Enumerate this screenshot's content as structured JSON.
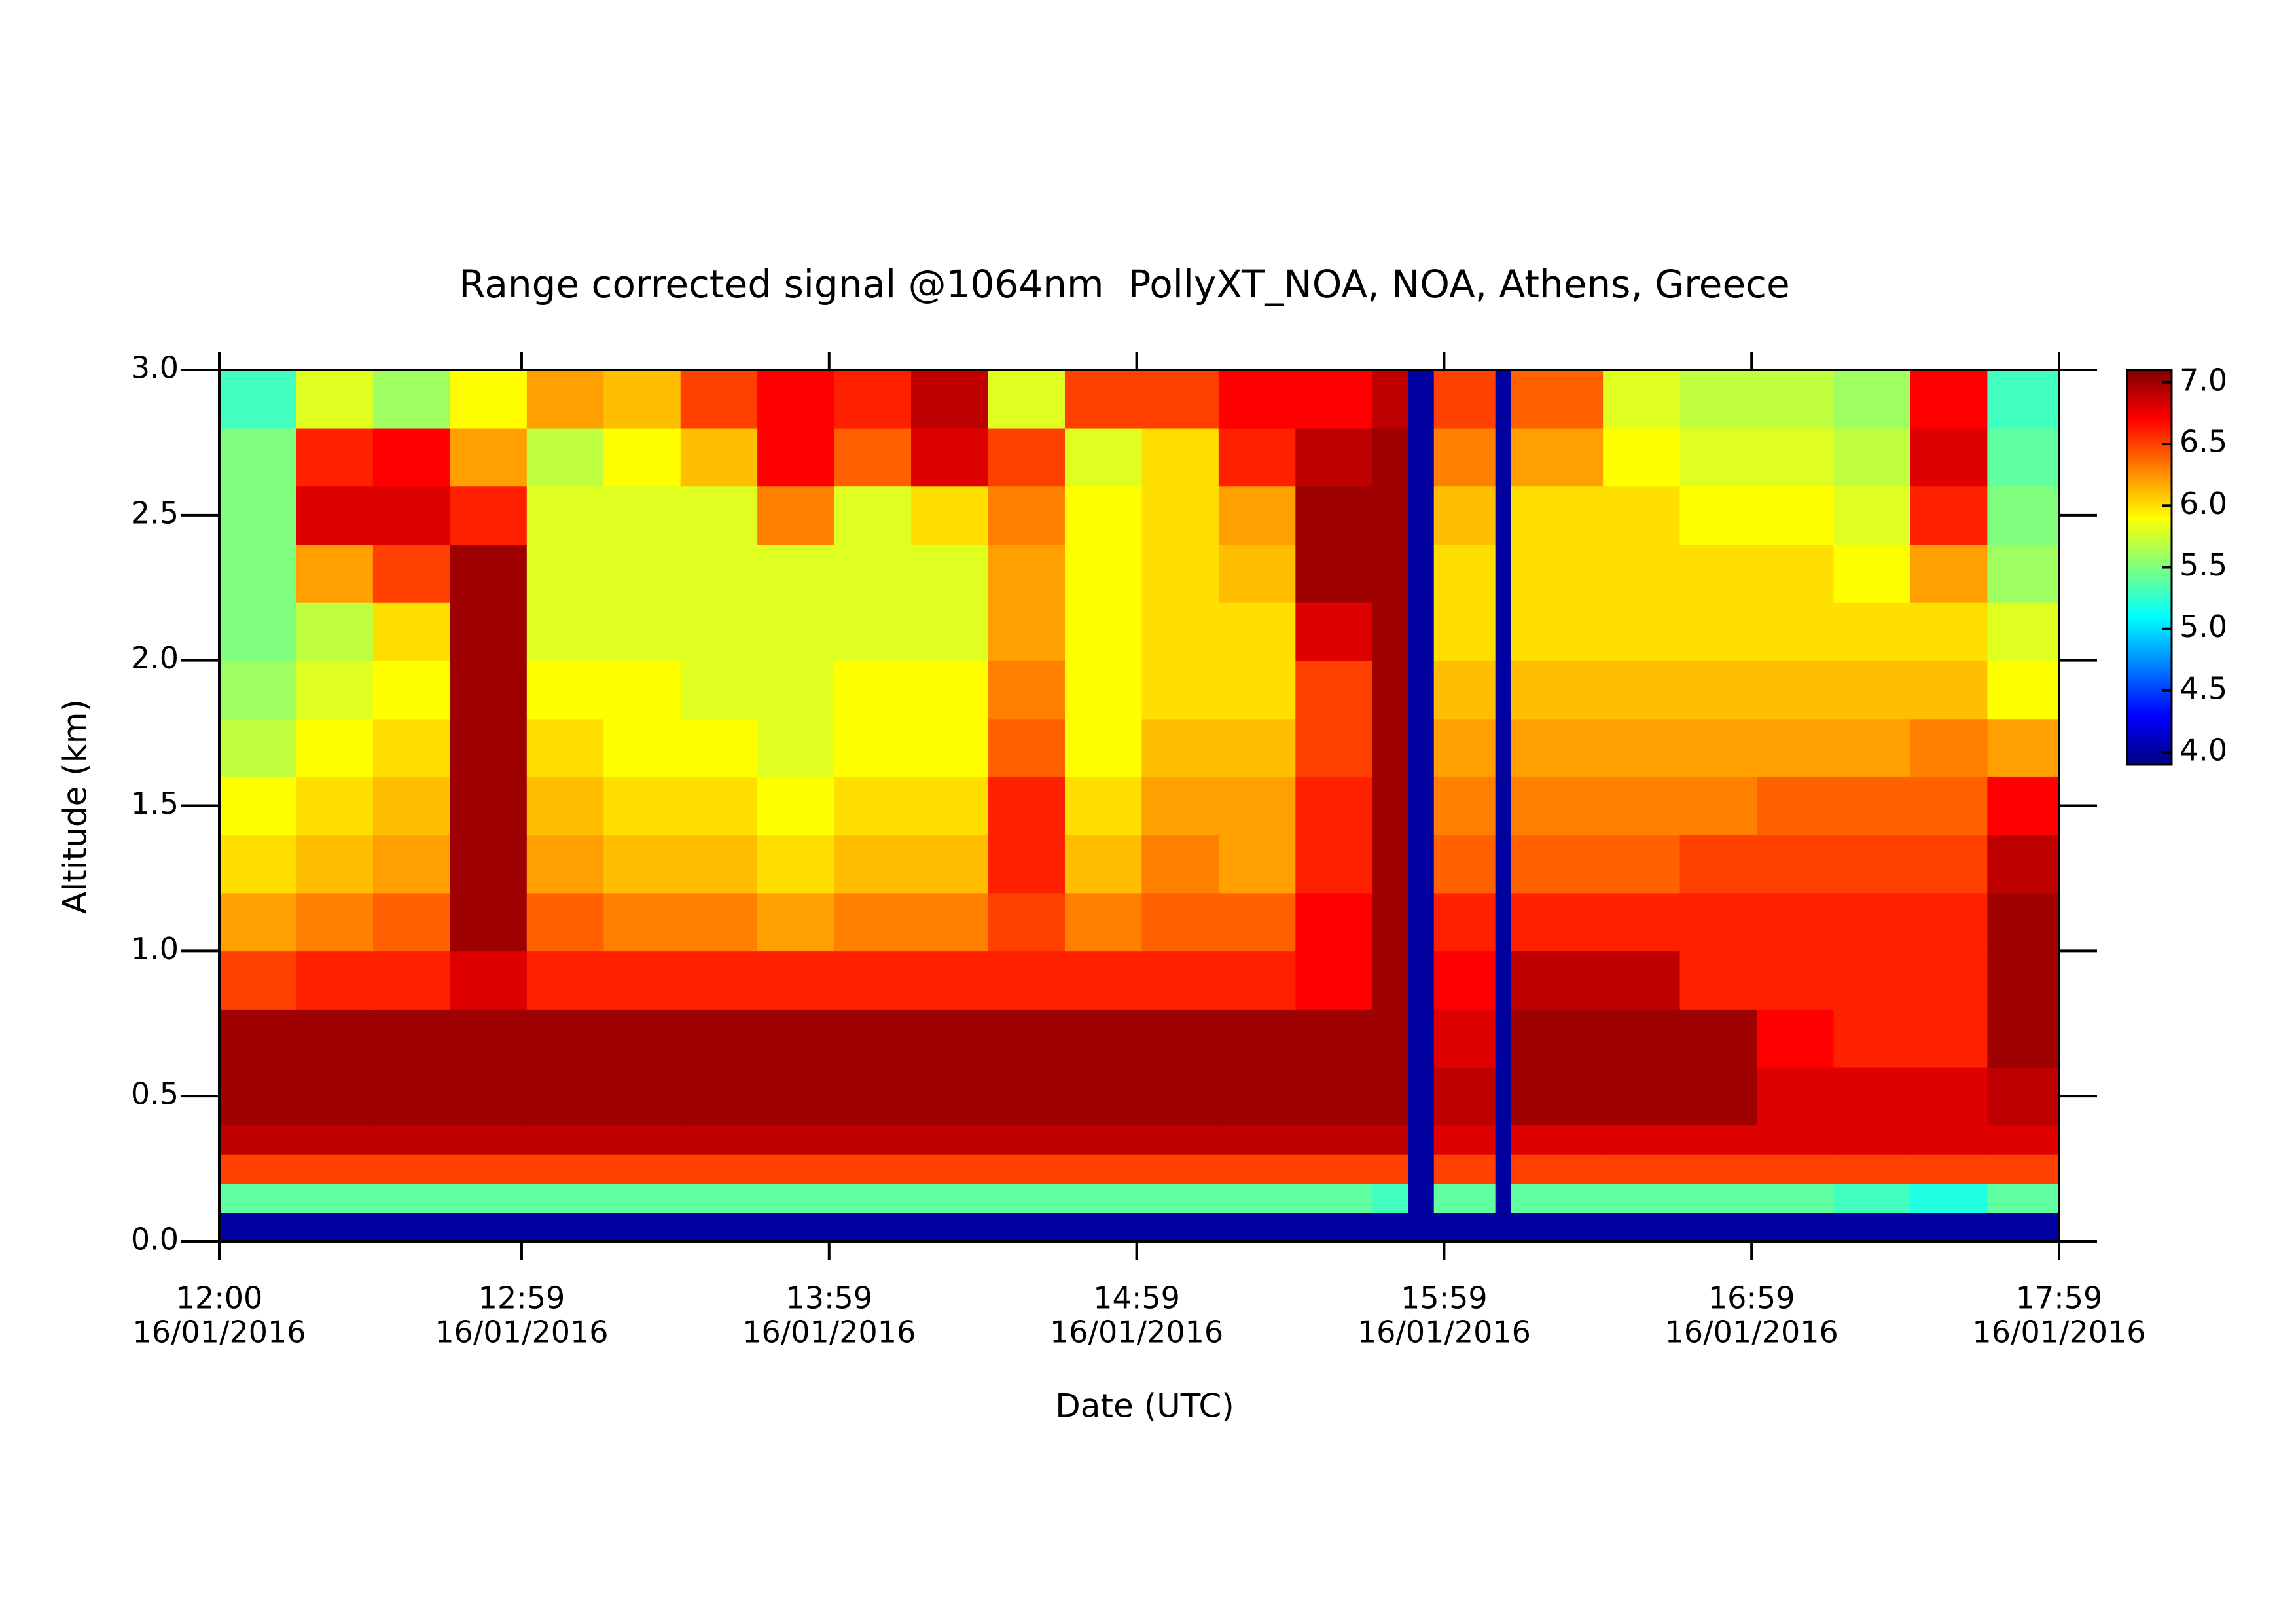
{
  "chart_data": {
    "type": "heatmap",
    "title": "Range corrected signal @1064nm  PollyXT_NOA, NOA, Athens, Greece",
    "xlabel": "Date (UTC)",
    "ylabel": "Altitude (km)",
    "colormap": "jet",
    "x_bins": [
      "2016-01-16T12:00",
      "2016-01-16T12:15",
      "2016-01-16T12:30",
      "2016-01-16T12:45",
      "2016-01-16T13:00",
      "2016-01-16T13:15",
      "2016-01-16T13:30",
      "2016-01-16T13:45",
      "2016-01-16T14:00",
      "2016-01-16T14:15",
      "2016-01-16T14:30",
      "2016-01-16T14:45",
      "2016-01-16T15:00",
      "2016-01-16T15:15",
      "2016-01-16T15:30",
      "2016-01-16T15:45",
      "2016-01-16T15:52",
      "2016-01-16T15:57",
      "2016-01-16T16:09",
      "2016-01-16T16:12",
      "2016-01-16T16:30",
      "2016-01-16T16:45",
      "2016-01-16T17:00",
      "2016-01-16T17:15",
      "2016-01-16T17:30",
      "2016-01-16T17:45",
      "2016-01-16T17:59"
    ],
    "y_bins": [
      0,
      0.1,
      0.2,
      0.3,
      0.4,
      0.6,
      0.8,
      1.0,
      1.2,
      1.4,
      1.6,
      1.8,
      2.0,
      2.2,
      2.4,
      2.6,
      2.8,
      3.0
    ],
    "z": [
      [
        4,
        4,
        4,
        4,
        4,
        4,
        4,
        4,
        4,
        4,
        4,
        4,
        4,
        4,
        4,
        4,
        4,
        4,
        4,
        4,
        4,
        4,
        4,
        4,
        4,
        4
      ],
      [
        5.4,
        5.4,
        5.4,
        5.4,
        5.4,
        5.4,
        5.4,
        5.4,
        5.4,
        5.4,
        5.4,
        5.4,
        5.4,
        5.4,
        5.4,
        5.3,
        4,
        5.4,
        4,
        5.4,
        5.4,
        5.4,
        5.4,
        5.3,
        5.2,
        5.4
      ],
      [
        6.5,
        6.5,
        6.5,
        6.5,
        6.5,
        6.5,
        6.5,
        6.5,
        6.5,
        6.5,
        6.5,
        6.5,
        6.5,
        6.5,
        6.5,
        6.5,
        4,
        6.5,
        4,
        6.5,
        6.5,
        6.5,
        6.5,
        6.5,
        6.5,
        6.5
      ],
      [
        6.9,
        6.9,
        6.9,
        6.9,
        6.9,
        6.9,
        6.9,
        6.9,
        6.9,
        6.9,
        6.9,
        6.9,
        6.9,
        6.9,
        6.9,
        6.9,
        4,
        6.8,
        4,
        6.8,
        6.8,
        6.8,
        6.8,
        6.8,
        6.8,
        6.8
      ],
      [
        7,
        7,
        7,
        7,
        7,
        7,
        7,
        7,
        7,
        7,
        7,
        7,
        7,
        7,
        7,
        7,
        4,
        6.9,
        4,
        7,
        7,
        7,
        6.8,
        6.8,
        6.8,
        6.9
      ],
      [
        7,
        7,
        7,
        7,
        7,
        7,
        7,
        7,
        7,
        7,
        7,
        7,
        7,
        7,
        7,
        7,
        4,
        6.8,
        4,
        7,
        7,
        7,
        6.7,
        6.6,
        6.6,
        7
      ],
      [
        6.5,
        6.6,
        6.6,
        6.8,
        6.6,
        6.6,
        6.6,
        6.6,
        6.6,
        6.6,
        6.6,
        6.6,
        6.6,
        6.6,
        6.7,
        7,
        4,
        6.7,
        4,
        6.9,
        6.9,
        6.6,
        6.6,
        6.6,
        6.6,
        7
      ],
      [
        6.2,
        6.3,
        6.4,
        7,
        6.4,
        6.3,
        6.3,
        6.2,
        6.3,
        6.3,
        6.5,
        6.3,
        6.4,
        6.4,
        6.7,
        7,
        4,
        6.6,
        4,
        6.6,
        6.6,
        6.6,
        6.6,
        6.6,
        6.6,
        7
      ],
      [
        6,
        6.1,
        6.2,
        7,
        6.2,
        6.1,
        6.1,
        6,
        6.1,
        6.1,
        6.6,
        6.1,
        6.3,
        6.2,
        6.6,
        7,
        4,
        6.4,
        4,
        6.4,
        6.4,
        6.5,
        6.5,
        6.5,
        6.5,
        6.9
      ],
      [
        5.9,
        6,
        6.1,
        7,
        6.1,
        6,
        6,
        5.9,
        6,
        6,
        6.6,
        6,
        6.2,
        6.2,
        6.6,
        7,
        4,
        6.3,
        4,
        6.3,
        6.3,
        6.3,
        6.4,
        6.4,
        6.4,
        6.7
      ],
      [
        5.7,
        5.9,
        6,
        7,
        6,
        5.9,
        5.9,
        5.8,
        5.9,
        5.9,
        6.4,
        5.9,
        6.1,
        6.1,
        6.5,
        7,
        4,
        6.2,
        4,
        6.2,
        6.2,
        6.2,
        6.2,
        6.2,
        6.3,
        6.2
      ],
      [
        5.6,
        5.8,
        5.9,
        7,
        5.9,
        5.9,
        5.8,
        5.8,
        5.9,
        5.9,
        6.3,
        5.9,
        6,
        6,
        6.5,
        7,
        4,
        6.1,
        4,
        6.1,
        6.1,
        6.1,
        6.1,
        6.1,
        6.1,
        5.9
      ],
      [
        5.5,
        5.7,
        6,
        7,
        5.8,
        5.8,
        5.8,
        5.8,
        5.8,
        5.8,
        6.2,
        5.9,
        6,
        6,
        6.8,
        7,
        4,
        6,
        4,
        6,
        6,
        6,
        6,
        6,
        6,
        5.8
      ],
      [
        5.5,
        6.2,
        6.5,
        7,
        5.8,
        5.8,
        5.8,
        5.8,
        5.8,
        5.8,
        6.2,
        5.9,
        6,
        6.1,
        7,
        7,
        4,
        6,
        4,
        6,
        6,
        6,
        6,
        5.9,
        6.2,
        5.6
      ],
      [
        5.5,
        6.8,
        6.8,
        6.6,
        5.8,
        5.8,
        5.8,
        6.3,
        5.8,
        6,
        6.3,
        5.9,
        6,
        6.2,
        7,
        7,
        4,
        6.1,
        4,
        6,
        6,
        5.9,
        5.9,
        5.8,
        6.6,
        5.5
      ],
      [
        5.5,
        6.6,
        6.7,
        6.2,
        5.7,
        5.9,
        6.1,
        6.7,
        6.4,
        6.8,
        6.5,
        5.8,
        6,
        6.6,
        6.9,
        7,
        4,
        6.3,
        4,
        6.2,
        5.9,
        5.8,
        5.8,
        5.7,
        6.8,
        5.4
      ],
      [
        5.3,
        5.8,
        5.6,
        5.9,
        6.2,
        6.1,
        6.5,
        6.7,
        6.6,
        6.9,
        5.8,
        6.5,
        6.5,
        6.7,
        6.7,
        6.9,
        4,
        6.5,
        4,
        6.4,
        5.8,
        5.7,
        5.7,
        5.6,
        6.7,
        5.3
      ]
    ],
    "xlim": [
      "2016-01-16T12:00",
      "2016-01-16T17:59"
    ],
    "xticks": [
      {
        "value": "2016-01-16T12:00",
        "label": [
          "12:00",
          "16/01/2016"
        ]
      },
      {
        "value": "2016-01-16T12:59",
        "label": [
          "12:59",
          "16/01/2016"
        ]
      },
      {
        "value": "2016-01-16T13:59",
        "label": [
          "13:59",
          "16/01/2016"
        ]
      },
      {
        "value": "2016-01-16T14:59",
        "label": [
          "14:59",
          "16/01/2016"
        ]
      },
      {
        "value": "2016-01-16T15:59",
        "label": [
          "15:59",
          "16/01/2016"
        ]
      },
      {
        "value": "2016-01-16T16:59",
        "label": [
          "16:59",
          "16/01/2016"
        ]
      },
      {
        "value": "2016-01-16T17:59",
        "label": [
          "17:59",
          "16/01/2016"
        ]
      }
    ],
    "ylim": [
      0,
      3
    ],
    "yticks": [
      {
        "value": 0,
        "label": "0.0"
      },
      0.5,
      {
        "value": 1,
        "label": "1.0"
      },
      1.5,
      {
        "value": 2,
        "label": "2.0"
      },
      2.5,
      {
        "value": 3,
        "label": "3.0"
      }
    ],
    "zlim": [
      3.9,
      7.1
    ],
    "zticks": [
      {
        "value": 4,
        "label": "4.0"
      },
      4.5,
      {
        "value": 5,
        "label": "5.0"
      },
      5.5,
      {
        "value": 6,
        "label": "6.0"
      },
      6.5,
      {
        "value": 7,
        "label": "7.0"
      }
    ]
  }
}
